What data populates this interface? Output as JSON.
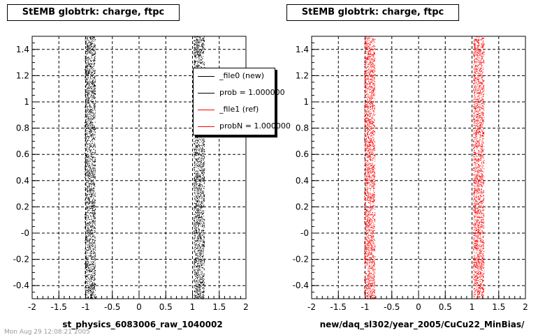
{
  "chart_data": [
    {
      "type": "scatter",
      "title": "StEMB globtrk: charge, ftpc",
      "xlabel": "st_physics_6083006_raw_1040002",
      "ylabel": "",
      "xlim": [
        -2,
        2
      ],
      "ylim": [
        -0.5,
        1.5
      ],
      "x_ticks": [
        "-2",
        "-1.5",
        "-1",
        "-0.5",
        "0",
        "0.5",
        "1",
        "1.5",
        "2"
      ],
      "y_ticks": [
        "-0.4",
        "-0.2",
        "-0",
        "0.2",
        "0.4",
        "0.6",
        "0.8",
        "1",
        "1.2",
        "1.4"
      ],
      "grid": true,
      "series": [
        {
          "name": "_file0 (new)",
          "color": "#000000",
          "bands": [
            [
              -1.02,
              -0.82
            ],
            [
              1.02,
              1.22
            ]
          ]
        }
      ],
      "legend": {
        "placement": "top-right",
        "entries": [
          {
            "label": "_file0 (new)",
            "color": "#000000"
          },
          {
            "label": "prob = 1.000000",
            "color": "#000000"
          },
          {
            "label": "_file1 (ref)",
            "color": "#ff0000"
          },
          {
            "label": "probN = 1.000000",
            "color": "#ff0000"
          }
        ]
      }
    },
    {
      "type": "scatter",
      "title": "StEMB globtrk: charge, ftpc",
      "xlabel": "new/daq_sl302/year_2005/CuCu22_MinBias/",
      "ylabel": "",
      "xlim": [
        -2,
        2
      ],
      "ylim": [
        -0.5,
        1.5
      ],
      "x_ticks": [
        "-2",
        "-1.5",
        "-1",
        "-0.5",
        "0",
        "0.5",
        "1",
        "1.5",
        "2"
      ],
      "y_ticks": [
        "-0.4",
        "-0.2",
        "-0",
        "0.2",
        "0.4",
        "0.6",
        "0.8",
        "1",
        "1.2",
        "1.4"
      ],
      "grid": true,
      "series": [
        {
          "name": "_file1 (ref)",
          "color": "#ff0000",
          "bands": [
            [
              -1.02,
              -0.82
            ],
            [
              1.02,
              1.22
            ]
          ]
        }
      ]
    }
  ],
  "footer_text": "Mon Aug 29 12:08:21 2005"
}
